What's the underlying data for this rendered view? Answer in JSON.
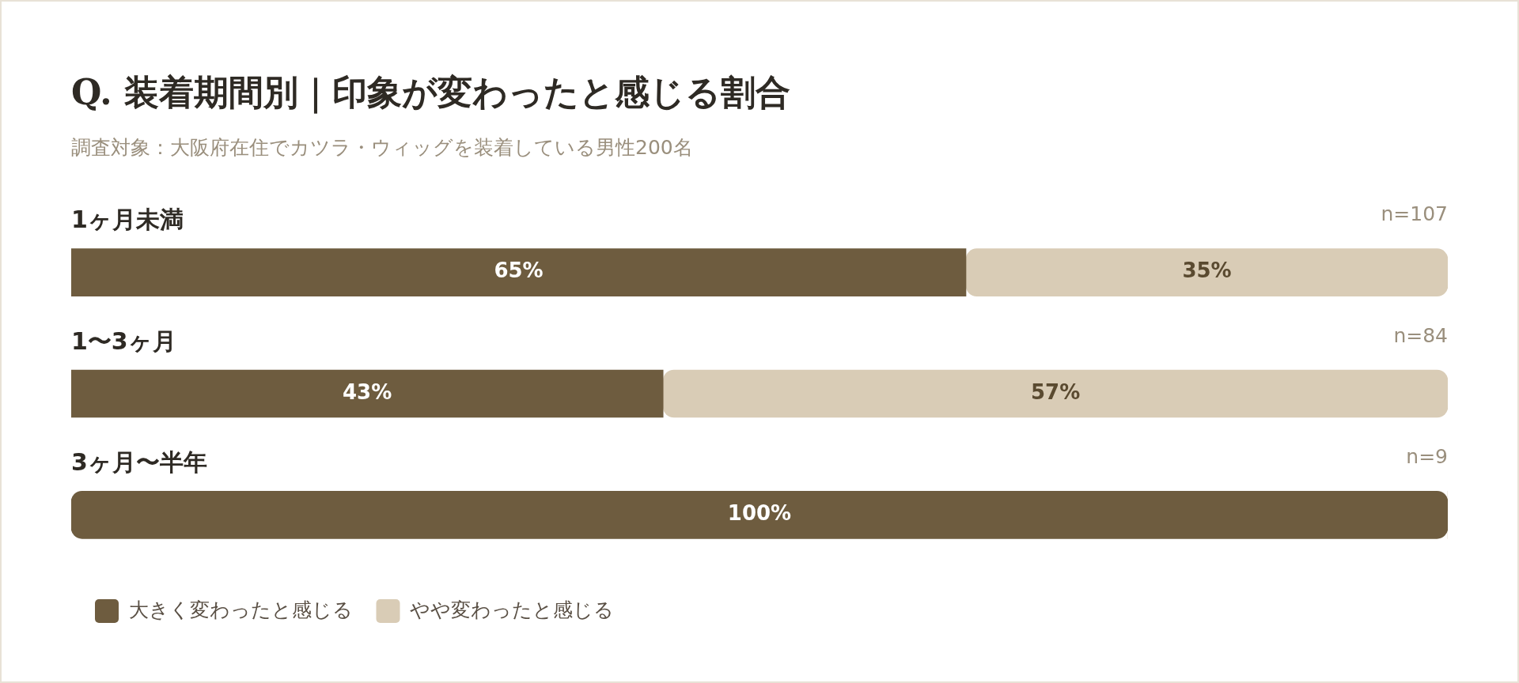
{
  "chart_data": {
    "type": "bar",
    "orientation": "horizontal",
    "stacked": true,
    "title": "Q. 装着期間別｜印象が変わったと感じる割合",
    "subtitle": "調査対象：大阪府在住でカツラ・ウィッグを装着している男性200名",
    "categories": [
      "1ヶ月未満",
      "1〜3ヶ月",
      "3ヶ月〜半年"
    ],
    "series": [
      {
        "name": "大きく変わったと感じる",
        "color": "#6e5c3f",
        "values": [
          65,
          43,
          100
        ],
        "value_labels": [
          "65%",
          "43%",
          "100%"
        ]
      },
      {
        "name": "やや変わったと感じる",
        "color": "#d9ccb6",
        "values": [
          35,
          57,
          0
        ],
        "value_labels": [
          "35%",
          "57%",
          null
        ]
      }
    ],
    "xlim": [
      0,
      100
    ],
    "annotations": [
      "n=107",
      "n=84",
      "n=9"
    ],
    "legend": "bottom left"
  }
}
